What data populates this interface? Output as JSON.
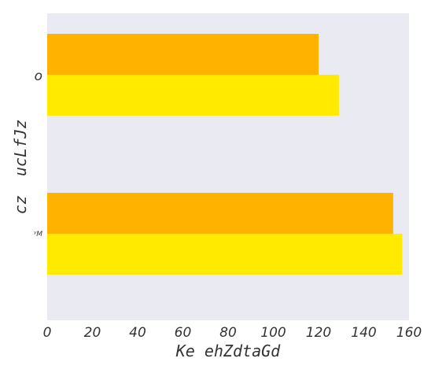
{
  "chart_data": {
    "type": "bar",
    "orientation": "horizontal",
    "categories": [
      "o",
      "ʸM"
    ],
    "series": [
      {
        "color": "#ffb300",
        "values": [
          120,
          153
        ]
      },
      {
        "color": "#ffea00",
        "values": [
          129,
          157
        ]
      }
    ],
    "xlabel": "Ke ehZdtaGd",
    "ylabel": "cz  ucLfJz",
    "xlim": [
      0,
      160
    ],
    "xticks": [
      0,
      20,
      40,
      60,
      80,
      100,
      120,
      140,
      160
    ],
    "grid": false,
    "background": "#eaeaf2"
  }
}
